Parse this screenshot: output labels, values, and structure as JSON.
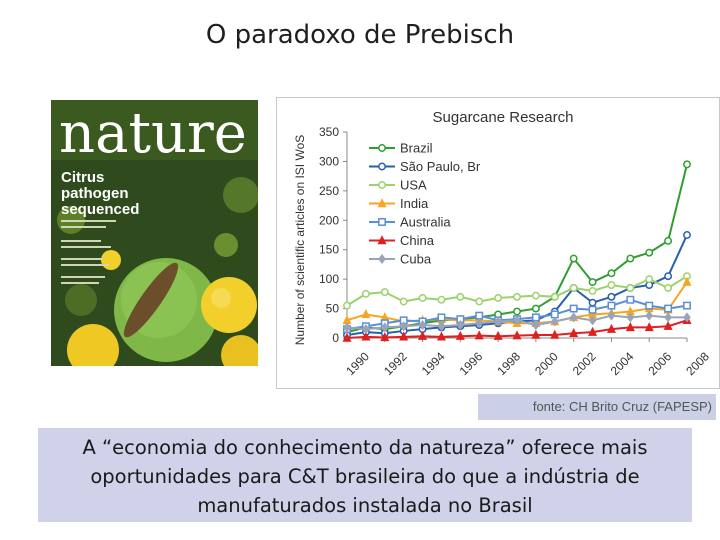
{
  "slide": {
    "title": "O paradoxo de Prebisch",
    "source": "fonte: CH Brito Cruz (FAPESP)",
    "conclusion": "A “economia do conhecimento da natureza” oferece mais oportunidades para C&T brasileira do que a indústria de manufaturados instalada no Brasil"
  },
  "cover": {
    "masthead": "nature",
    "headline_1": "Citrus",
    "headline_2": "pathogen",
    "headline_3": "sequenced",
    "colors": {
      "background": "#2f4a1c",
      "masthead": "#ffffff",
      "fruit": "#f2cf2a",
      "green_fruit": "#7fb848"
    }
  },
  "chart_data": {
    "type": "line",
    "title": "Sugarcane Research",
    "ylabel": "Number of scientific articles on ISI WoS",
    "xlabel": "",
    "ylim": [
      0,
      350
    ],
    "yticks": [
      0,
      50,
      100,
      150,
      200,
      250,
      300,
      350
    ],
    "xlim": [
      1990,
      2008
    ],
    "xticks": [
      1990,
      1992,
      1994,
      1996,
      1998,
      2000,
      2002,
      2004,
      2006,
      2008
    ],
    "x": [
      1990,
      1991,
      1992,
      1993,
      1994,
      1995,
      1996,
      1997,
      1998,
      1999,
      2000,
      2001,
      2002,
      2003,
      2004,
      2005,
      2006,
      2007,
      2008
    ],
    "grid": false,
    "legend": "top-left",
    "series": [
      {
        "name": "Brazil",
        "color": "#2e9e2e",
        "marker": "circle",
        "values": [
          10,
          18,
          15,
          20,
          25,
          30,
          32,
          35,
          40,
          45,
          50,
          70,
          135,
          95,
          110,
          135,
          145,
          165,
          295
        ]
      },
      {
        "name": "São Paulo, Br",
        "color": "#2a5faa",
        "marker": "circle",
        "values": [
          5,
          10,
          8,
          12,
          15,
          18,
          20,
          22,
          25,
          28,
          30,
          45,
          85,
          60,
          70,
          85,
          90,
          105,
          175
        ]
      },
      {
        "name": "USA",
        "color": "#9bd26a",
        "marker": "circle",
        "values": [
          55,
          75,
          78,
          62,
          68,
          65,
          70,
          62,
          68,
          70,
          72,
          70,
          85,
          80,
          90,
          85,
          100,
          85,
          105
        ]
      },
      {
        "name": "India",
        "color": "#f5a623",
        "marker": "triangle",
        "values": [
          30,
          40,
          35,
          28,
          30,
          32,
          30,
          30,
          28,
          25,
          25,
          28,
          35,
          40,
          42,
          45,
          50,
          48,
          95
        ]
      },
      {
        "name": "Australia",
        "color": "#5b8ed6",
        "marker": "square",
        "values": [
          15,
          20,
          25,
          30,
          28,
          35,
          32,
          38,
          30,
          32,
          35,
          40,
          50,
          48,
          55,
          65,
          55,
          50,
          55
        ]
      },
      {
        "name": "China",
        "color": "#e02020",
        "marker": "triangle",
        "values": [
          0,
          2,
          1,
          2,
          3,
          2,
          3,
          4,
          3,
          4,
          5,
          5,
          8,
          10,
          15,
          18,
          18,
          20,
          30
        ]
      },
      {
        "name": "Cuba",
        "color": "#9aa4b8",
        "marker": "diamond",
        "values": [
          18,
          15,
          18,
          20,
          22,
          20,
          22,
          25,
          28,
          30,
          22,
          28,
          35,
          30,
          38,
          35,
          38,
          35,
          35
        ]
      }
    ]
  }
}
